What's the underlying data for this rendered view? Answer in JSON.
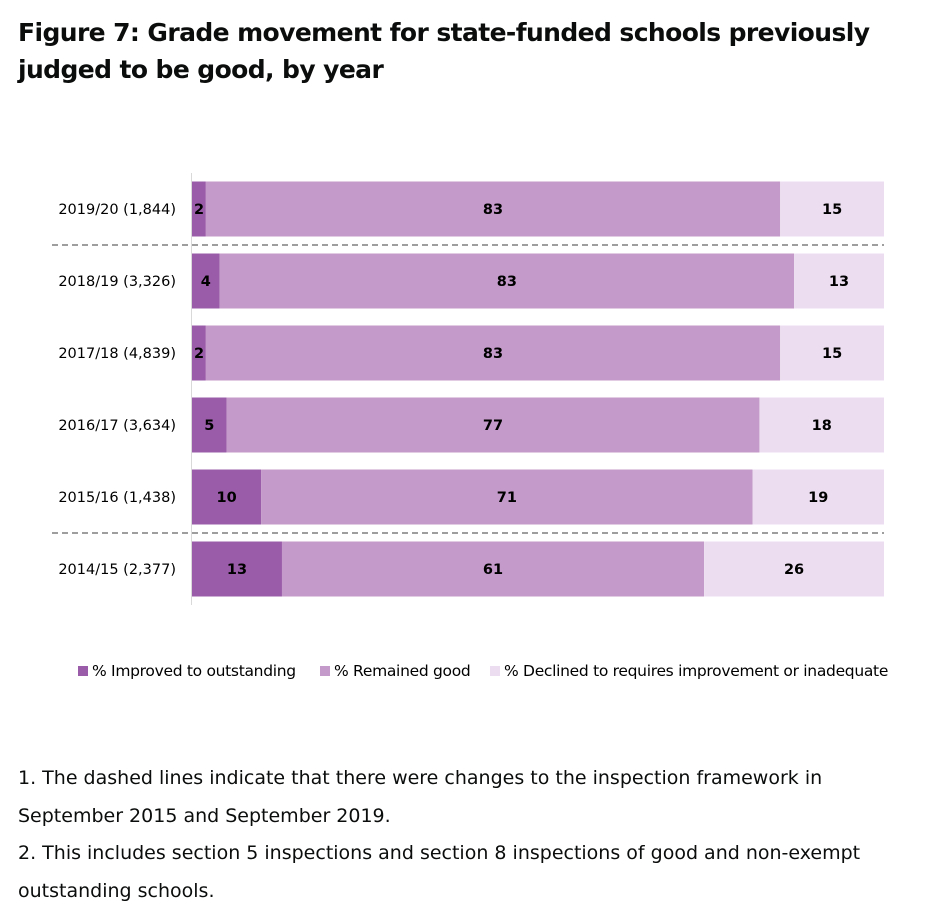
{
  "figure": {
    "title": "Figure 7: Grade movement for state-funded schools previously judged to be good, by year"
  },
  "chart_data": {
    "type": "bar",
    "orientation": "horizontal",
    "stacked": true,
    "percent": true,
    "title": "",
    "xlabel": "",
    "ylabel": "",
    "xlim": [
      0,
      100
    ],
    "grid": false,
    "legend_position": "bottom",
    "categories": [
      "2019/20 (1,844)",
      "2018/19 (3,326)",
      "2017/18 (4,839)",
      "2016/17 (3,634)",
      "2015/16 (1,438)",
      "2014/15 (2,377)"
    ],
    "series": [
      {
        "name": "% Improved to outstanding",
        "color": "#9a5ba8",
        "values": [
          2,
          4,
          2,
          5,
          10,
          13
        ]
      },
      {
        "name": "% Remained good",
        "color": "#c39ac9",
        "values": [
          83,
          83,
          83,
          77,
          71,
          61
        ]
      },
      {
        "name": "% Declined to requires improvement or inadequate",
        "color": "#ecdef0",
        "values": [
          15,
          13,
          15,
          18,
          19,
          26
        ]
      }
    ],
    "dashed_separators_after": [
      "2019/20 (1,844)",
      "2015/16 (1,438)"
    ]
  },
  "notes": [
    "1. The dashed lines indicate that there were changes to the inspection framework in September 2015 and September 2019.",
    "2. This includes section 5 inspections and section 8 inspections of good and non-exempt outstanding schools."
  ]
}
